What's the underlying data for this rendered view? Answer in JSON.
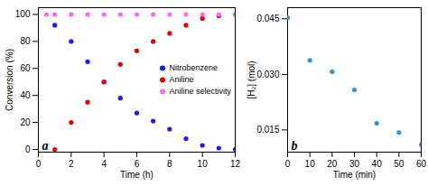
{
  "chart_data": [
    {
      "type": "scatter",
      "xlabel": "Time (h)",
      "ylabel": "Conversion (%)",
      "annotations": [
        "a"
      ],
      "series": [
        {
          "name": "Nitrobenzene",
          "color": "#1a1aff",
          "x": [
            1,
            2,
            3,
            4,
            5,
            6,
            7,
            8,
            9,
            10,
            11,
            12
          ],
          "values": [
            92,
            80,
            65,
            50,
            38,
            27,
            21,
            15,
            8,
            3,
            1,
            0
          ]
        },
        {
          "name": "Aniline",
          "color": "#e60000",
          "x": [
            1,
            2,
            3,
            4,
            5,
            6,
            7,
            8,
            9,
            10,
            11,
            12
          ],
          "values": [
            0,
            20,
            35,
            50,
            63,
            73,
            80,
            86,
            92,
            97,
            99,
            100
          ]
        },
        {
          "name": "Aniline selectivity",
          "color": "#ff66ff",
          "x": [
            0.5,
            1,
            2,
            3,
            4,
            5,
            6,
            7,
            8,
            9,
            10,
            11,
            12
          ],
          "values": [
            100,
            100,
            100,
            100,
            100,
            100,
            100,
            100,
            100,
            100,
            100,
            100,
            100
          ]
        }
      ],
      "xlim": [
        0,
        12
      ],
      "ylim": [
        -2,
        105
      ],
      "xticks": [
        0,
        2,
        4,
        6,
        8,
        10,
        12
      ],
      "yticks": [
        0,
        20,
        40,
        60,
        80,
        100
      ],
      "legend": "right",
      "grid": false
    },
    {
      "type": "scatter",
      "xlabel": "Time (min)",
      "ylabel": "[H₂] (mol)",
      "annotations": [
        "b"
      ],
      "x": [
        0,
        10,
        20,
        30,
        40,
        50,
        60
      ],
      "values": [
        0.0453,
        0.0338,
        0.0307,
        0.0258,
        0.0168,
        0.0143,
        0.011
      ],
      "color": "#3399cc",
      "xlim": [
        0,
        60
      ],
      "ylim": [
        0.009,
        0.048
      ],
      "xticks": [
        0,
        10,
        20,
        30,
        40,
        50,
        60
      ],
      "yticks": [
        0.015,
        {
          "value": 0.03,
          "label": "0.030"
        },
        0.045
      ],
      "grid": false
    }
  ]
}
